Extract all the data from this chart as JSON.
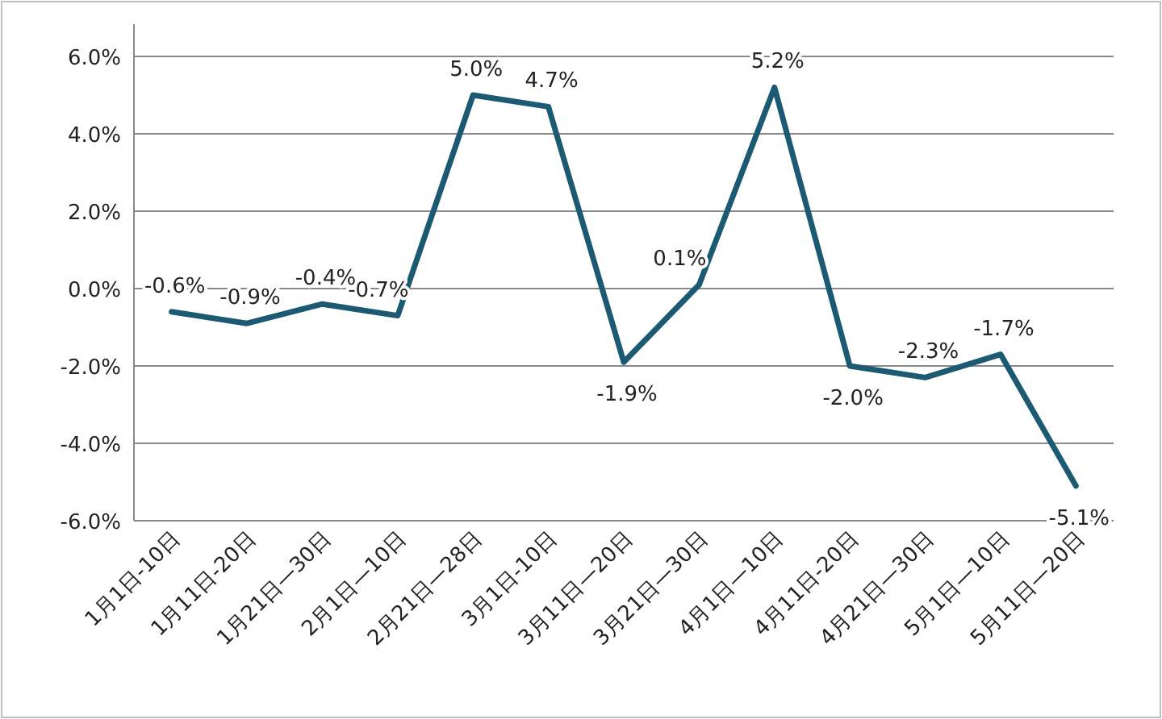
{
  "chart_data": {
    "type": "line",
    "categories": [
      "1月1日-10日",
      "1月11日-20日",
      "1月21日—30日",
      "2月1日—10日",
      "2月21日—28日",
      "3月1日-10日",
      "3月11日—20日",
      "3月21日—30日",
      "4月1日—10日",
      "4月11日-20日",
      "4月21日—30日",
      "5月1日—10日",
      "5月11日—20日"
    ],
    "series": [
      {
        "color": "#1b5a72",
        "values": [
          -0.6,
          -0.9,
          -0.4,
          -0.7,
          5.0,
          4.7,
          -1.9,
          0.1,
          5.2,
          -2.0,
          -2.3,
          -1.7,
          -5.1
        ],
        "value_labels": [
          "-0.6%",
          "-0.9%",
          "-0.4%",
          "-0.7%",
          "5.0%",
          "4.7%",
          "-1.9%",
          "0.1%",
          "5.2%",
          "-2.0%",
          "-2.3%",
          "-1.7%",
          "-5.1%"
        ]
      }
    ],
    "ylim": [
      -6,
      6
    ],
    "yticks": [
      {
        "value": -6,
        "label": "-6.0%"
      },
      {
        "value": -4,
        "label": "-4.0%"
      },
      {
        "value": -2,
        "label": "-2.0%"
      },
      {
        "value": 0,
        "label": "0.0%"
      },
      {
        "value": 2,
        "label": "2.0%"
      },
      {
        "value": 4,
        "label": "4.0%"
      },
      {
        "value": 6,
        "label": "6.0%"
      }
    ],
    "grid": "y",
    "marker": "none",
    "line_style": "solid"
  }
}
